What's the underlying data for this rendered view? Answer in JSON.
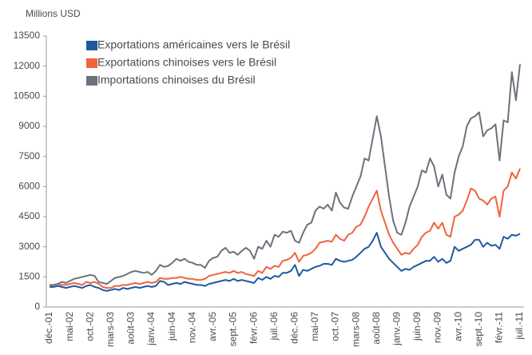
{
  "chart_data": {
    "type": "line",
    "y_label": "Millions USD",
    "categories": [
      "déc.-01",
      null,
      null,
      null,
      null,
      "mai-02",
      null,
      null,
      null,
      null,
      "oct.-02",
      null,
      null,
      null,
      null,
      "mars-03",
      null,
      null,
      null,
      null,
      "août-03",
      null,
      null,
      null,
      null,
      "janv.-04",
      null,
      null,
      null,
      null,
      "juin-04",
      null,
      null,
      null,
      null,
      "nov.-04",
      null,
      null,
      null,
      null,
      "avr.-05",
      null,
      null,
      null,
      null,
      "sept.-05",
      null,
      null,
      null,
      null,
      "févr.-06",
      null,
      null,
      null,
      null,
      "juil.-06",
      null,
      null,
      null,
      null,
      "déc.-06",
      null,
      null,
      null,
      null,
      "mai-07",
      null,
      null,
      null,
      null,
      "oct.-07",
      null,
      null,
      null,
      null,
      "mars-08",
      null,
      null,
      null,
      null,
      "août-08",
      null,
      null,
      null,
      null,
      "janv.-09",
      null,
      null,
      null,
      null,
      "juin-09",
      null,
      null,
      null,
      null,
      "nov.-09",
      null,
      null,
      null,
      null,
      "avr.-10",
      null,
      null,
      null,
      null,
      "sept.-10",
      null,
      null,
      null,
      null,
      "févr.-11",
      null,
      null,
      null,
      null,
      "juil.-11"
    ],
    "series": [
      {
        "name": "Exportations américaines vers le Brésil",
        "color": "#1f5aa0",
        "values": [
          1000,
          1000,
          1050,
          1000,
          950,
          1000,
          1050,
          1000,
          950,
          1050,
          1100,
          1000,
          950,
          850,
          800,
          850,
          900,
          850,
          950,
          900,
          950,
          1000,
          950,
          1000,
          1050,
          1000,
          1050,
          1300,
          1250,
          1100,
          1150,
          1200,
          1150,
          1250,
          1200,
          1150,
          1100,
          1100,
          1050,
          1150,
          1200,
          1250,
          1300,
          1350,
          1300,
          1400,
          1300,
          1350,
          1300,
          1250,
          1200,
          1450,
          1350,
          1500,
          1400,
          1550,
          1500,
          1700,
          1700,
          1800,
          2100,
          1550,
          1850,
          1800,
          1900,
          2000,
          2050,
          2150,
          2150,
          2100,
          2400,
          2300,
          2250,
          2300,
          2350,
          2500,
          2700,
          2900,
          3000,
          3300,
          3700,
          3000,
          2700,
          2400,
          2200,
          2000,
          1800,
          1900,
          1850,
          2000,
          2100,
          2200,
          2300,
          2300,
          2500,
          2250,
          2400,
          2200,
          2300,
          3000,
          2800,
          2900,
          3000,
          3100,
          3350,
          3350,
          3000,
          3200,
          3050,
          3100,
          2900,
          3500,
          3400,
          3600,
          3550,
          3650
        ]
      },
      {
        "name": "Exportations chinoises vers le Brésil",
        "color": "#f0643c",
        "values": [
          1100,
          1100,
          1150,
          1100,
          1100,
          1150,
          1200,
          1150,
          1100,
          1250,
          1200,
          1250,
          1150,
          1000,
          950,
          950,
          1050,
          1050,
          1100,
          1100,
          1150,
          1200,
          1150,
          1200,
          1250,
          1200,
          1250,
          1450,
          1400,
          1400,
          1450,
          1450,
          1500,
          1450,
          1400,
          1400,
          1350,
          1350,
          1400,
          1550,
          1600,
          1650,
          1700,
          1750,
          1700,
          1800,
          1700,
          1750,
          1650,
          1600,
          1550,
          1800,
          1700,
          2000,
          1900,
          2050,
          2000,
          2300,
          2350,
          2450,
          2700,
          2250,
          2550,
          2600,
          2700,
          2900,
          3200,
          3250,
          3300,
          3250,
          3600,
          3400,
          3300,
          3600,
          3700,
          4000,
          4100,
          4500,
          5000,
          5400,
          5800,
          4800,
          4200,
          3600,
          3200,
          2900,
          2600,
          2700,
          2650,
          2900,
          3100,
          3500,
          3700,
          3800,
          4200,
          3900,
          4200,
          3600,
          3500,
          4500,
          4600,
          4800,
          5300,
          5900,
          5800,
          5400,
          5300,
          5100,
          5400,
          5500,
          4500,
          5800,
          6000,
          6700,
          6400,
          6900
        ]
      },
      {
        "name": "Importations chinoises du Brésil",
        "color": "#6d717a",
        "values": [
          1050,
          1100,
          1150,
          1250,
          1200,
          1300,
          1400,
          1450,
          1500,
          1550,
          1600,
          1550,
          1250,
          1200,
          1150,
          1300,
          1450,
          1500,
          1550,
          1650,
          1750,
          1800,
          1750,
          1700,
          1750,
          1600,
          1800,
          2100,
          2000,
          2050,
          2200,
          2400,
          2300,
          2400,
          2250,
          2200,
          2100,
          2100,
          1950,
          2300,
          2450,
          2500,
          2800,
          2950,
          2700,
          2750,
          2600,
          2800,
          2950,
          2800,
          2400,
          3000,
          2900,
          3300,
          3000,
          3600,
          3500,
          3750,
          3700,
          3800,
          3300,
          3200,
          3700,
          4100,
          4200,
          4800,
          5000,
          4900,
          5100,
          4800,
          5700,
          5200,
          4950,
          4900,
          5500,
          6000,
          6500,
          7400,
          7300,
          8400,
          9500,
          8500,
          7000,
          5500,
          4300,
          3700,
          3600,
          4200,
          5000,
          5500,
          6000,
          6800,
          6700,
          7400,
          7000,
          6000,
          6600,
          5600,
          5400,
          6700,
          7500,
          8000,
          9000,
          9400,
          9500,
          9700,
          8500,
          8800,
          8900,
          9100,
          7300,
          9300,
          9200,
          11700,
          10300,
          12100
        ]
      }
    ],
    "ylim": [
      0,
      13500
    ],
    "yticks": [
      0,
      1500,
      3000,
      4500,
      6000,
      7500,
      9000,
      10500,
      12000,
      13500
    ]
  }
}
